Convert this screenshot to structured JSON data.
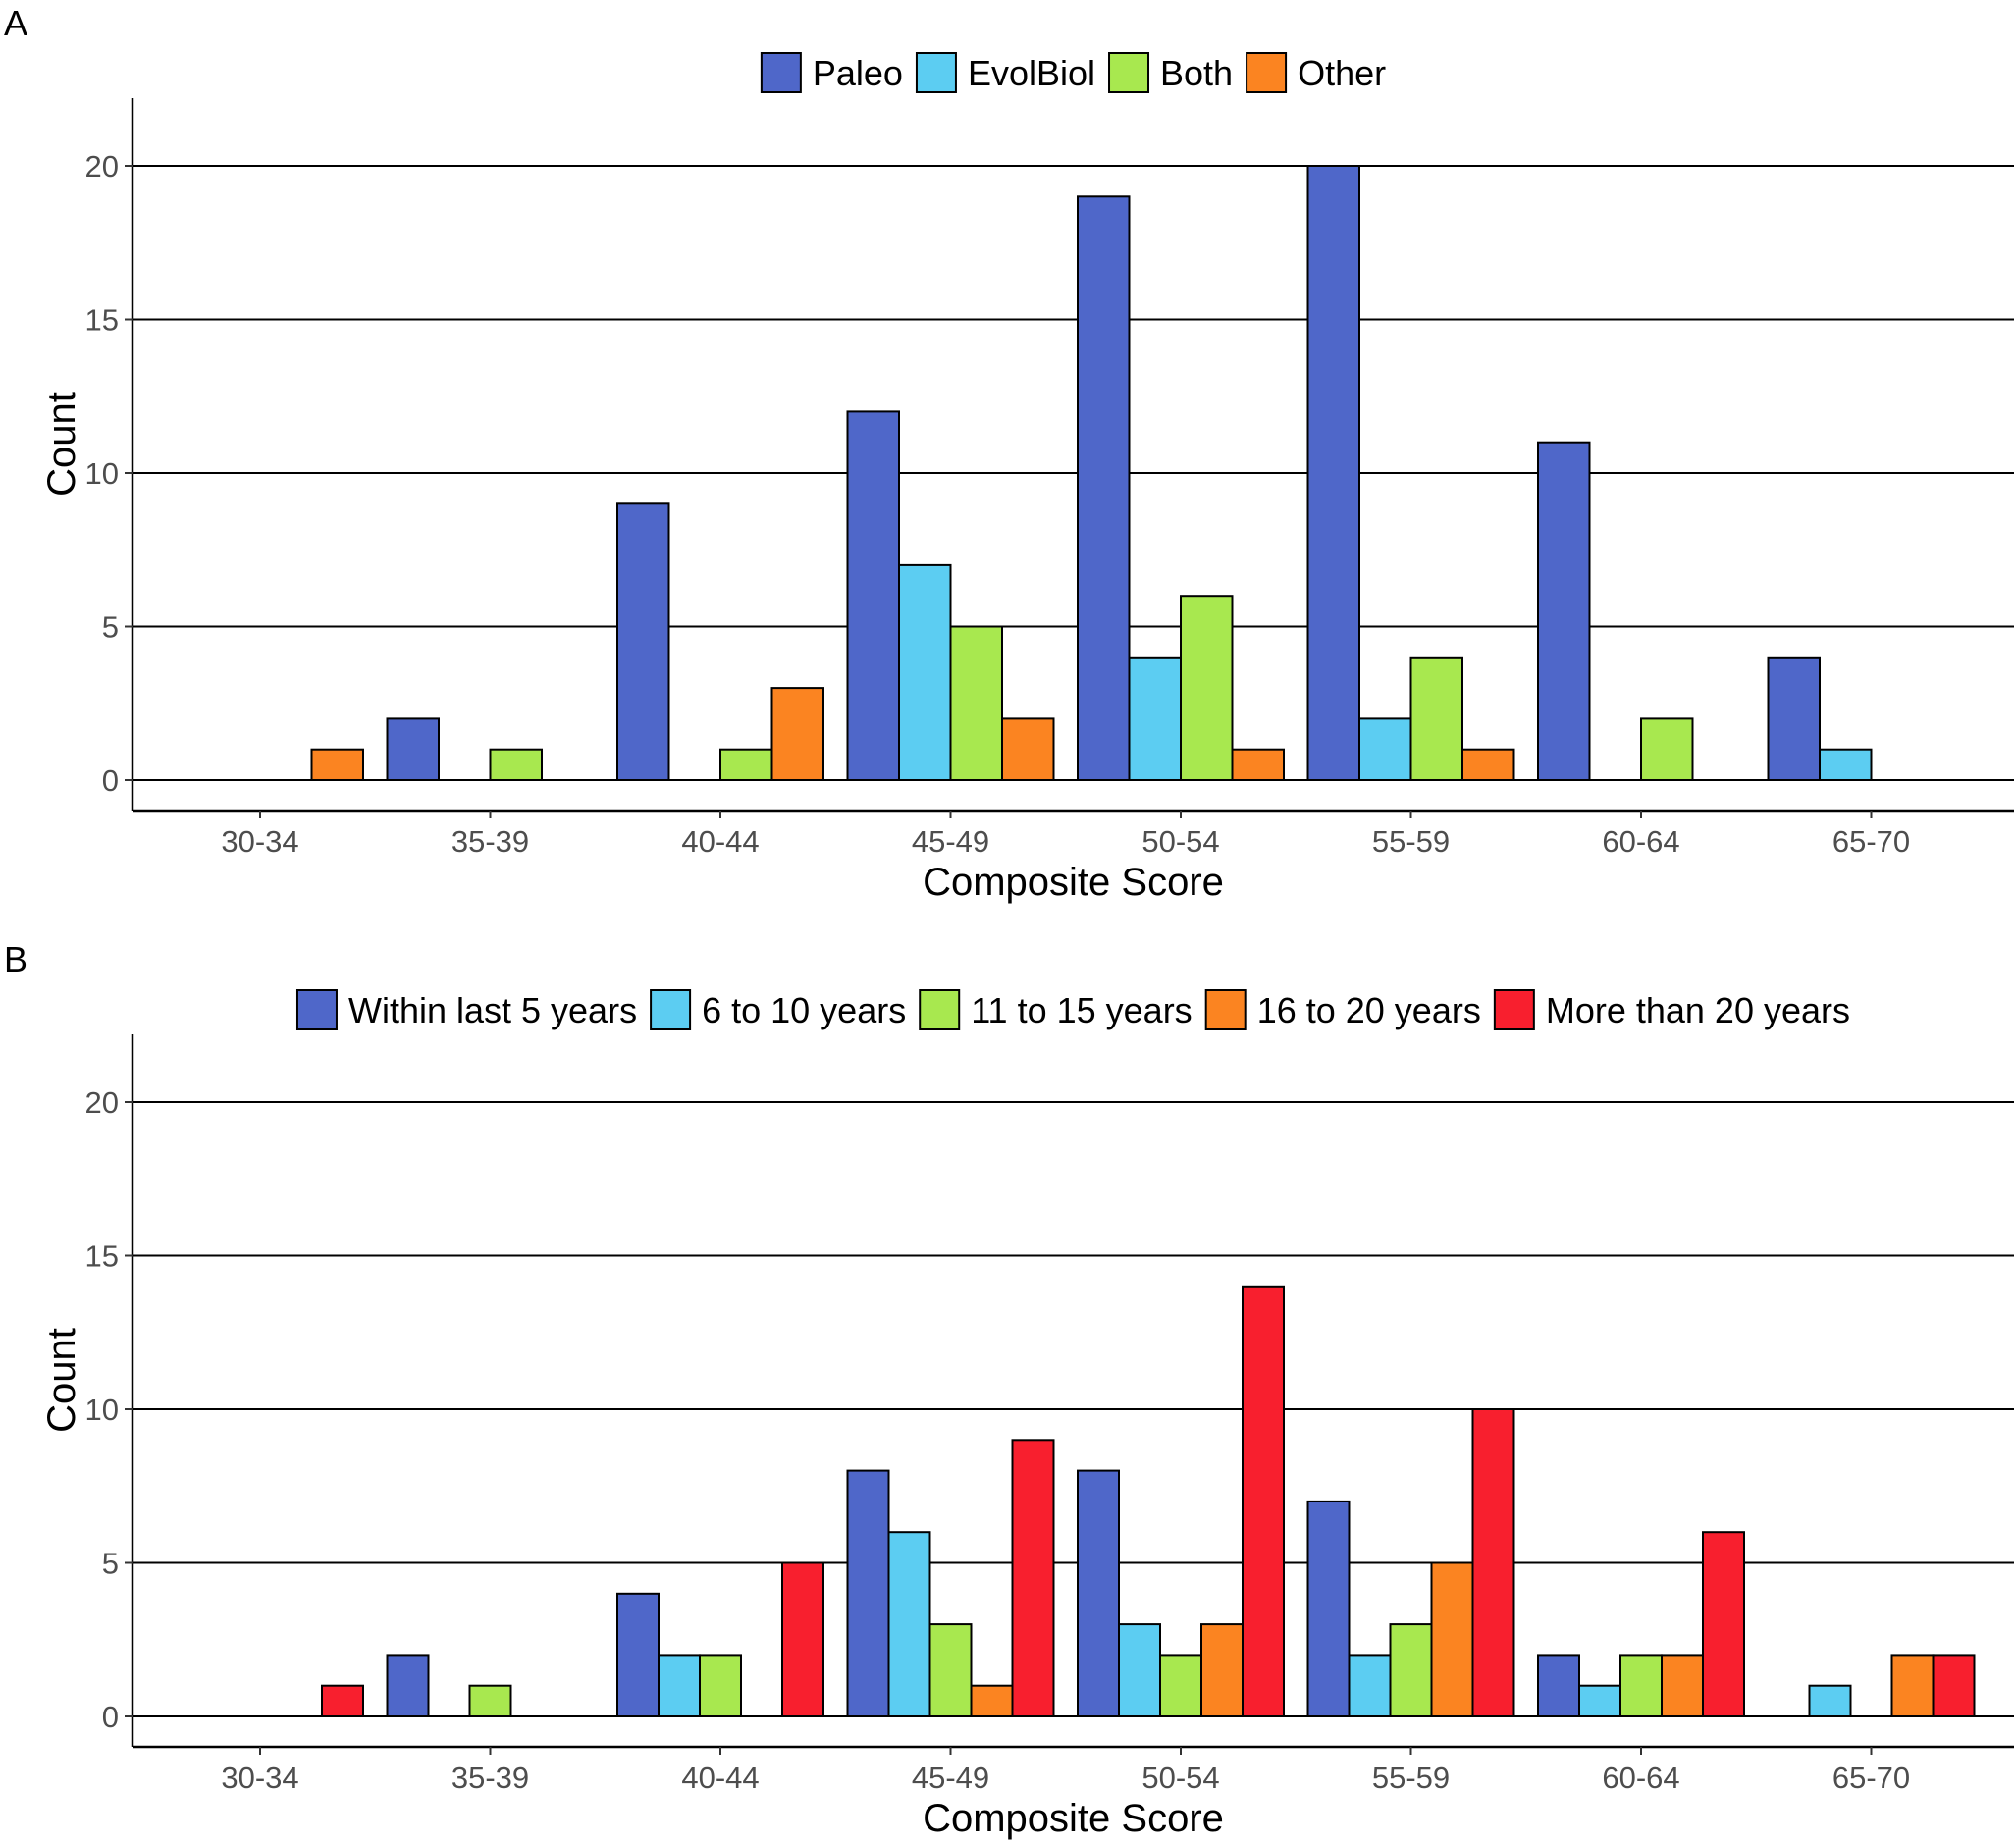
{
  "chart_data": [
    {
      "type": "bar",
      "panel_label": "A",
      "title": "",
      "xlabel": "Composite Score",
      "ylabel": "Count",
      "ylim": [
        0,
        21
      ],
      "yticks": [
        "0",
        "5",
        "10",
        "15",
        "20"
      ],
      "ytick_values": [
        0,
        5,
        10,
        15,
        20
      ],
      "grid": "horizontal major lines",
      "legend_position": "top",
      "categories": [
        "30-34",
        "35-39",
        "40-44",
        "45-49",
        "50-54",
        "55-59",
        "60-64",
        "65-70"
      ],
      "series": [
        {
          "name": "Paleo",
          "color": "#4f67c9",
          "values": [
            0,
            2,
            9,
            12,
            19,
            20,
            11,
            4
          ]
        },
        {
          "name": "EvolBiol",
          "color": "#5ccdf2",
          "values": [
            0,
            0,
            0,
            7,
            4,
            2,
            0,
            1
          ]
        },
        {
          "name": "Both",
          "color": "#a8e84f",
          "values": [
            0,
            1,
            1,
            5,
            6,
            4,
            2,
            0
          ]
        },
        {
          "name": "Other",
          "color": "#fb8421",
          "values": [
            1,
            0,
            3,
            2,
            1,
            1,
            0,
            0
          ]
        }
      ]
    },
    {
      "type": "bar",
      "panel_label": "B",
      "title": "",
      "xlabel": "Composite Score",
      "ylabel": "Count",
      "ylim": [
        0,
        21
      ],
      "yticks": [
        "0",
        "5",
        "10",
        "15",
        "20"
      ],
      "ytick_values": [
        0,
        5,
        10,
        15,
        20
      ],
      "grid": "horizontal major lines",
      "legend_position": "top",
      "categories": [
        "30-34",
        "35-39",
        "40-44",
        "45-49",
        "50-54",
        "55-59",
        "60-64",
        "65-70"
      ],
      "series": [
        {
          "name": "Within last 5 years",
          "color": "#4f67c9",
          "values": [
            0,
            2,
            4,
            8,
            8,
            7,
            2,
            0
          ]
        },
        {
          "name": "6 to 10 years",
          "color": "#5ccdf2",
          "values": [
            0,
            0,
            2,
            6,
            3,
            2,
            1,
            1
          ]
        },
        {
          "name": "11 to 15 years",
          "color": "#a8e84f",
          "values": [
            0,
            1,
            2,
            3,
            2,
            3,
            2,
            0
          ]
        },
        {
          "name": "16 to 20 years",
          "color": "#fb8421",
          "values": [
            0,
            0,
            0,
            1,
            3,
            5,
            2,
            2
          ]
        },
        {
          "name": "More than 20 years",
          "color": "#f81f2e",
          "values": [
            1,
            0,
            5,
            9,
            14,
            10,
            6,
            2
          ]
        }
      ]
    }
  ]
}
